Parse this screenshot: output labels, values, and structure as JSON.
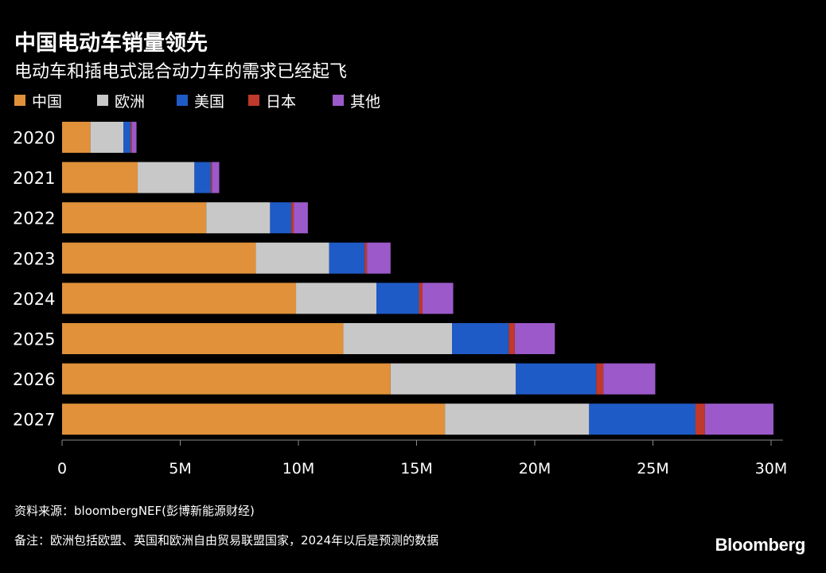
{
  "title": "中国电动车销量领先",
  "subtitle": "电动车和插电式混合动力车的需求已经起飞",
  "source": "资料来源：bloombergNEF(彭博新能源财经)",
  "note": "备注：欧洲包括欧盟、英国和欧洲自由贸易联盟国家，2024年以后是预测的数据",
  "brand": "Bloomberg",
  "colors": {
    "background": "#000000",
    "text": "#ffffff",
    "axis": "#888888"
  },
  "chart_data": {
    "type": "bar",
    "orientation": "horizontal",
    "stacked": true,
    "categories": [
      "2020",
      "2021",
      "2022",
      "2023",
      "2024",
      "2025",
      "2026",
      "2027"
    ],
    "series": [
      {
        "name": "中国",
        "color": "#E0913A",
        "values": [
          1.2,
          3.2,
          6.1,
          8.2,
          9.9,
          11.9,
          13.9,
          16.2
        ]
      },
      {
        "name": "欧洲",
        "color": "#C8C8C8",
        "values": [
          1.4,
          2.4,
          2.7,
          3.1,
          3.4,
          4.6,
          5.3,
          6.1
        ]
      },
      {
        "name": "美国",
        "color": "#1F5BC6",
        "values": [
          0.3,
          0.7,
          0.9,
          1.5,
          1.8,
          2.4,
          3.4,
          4.5
        ]
      },
      {
        "name": "日本",
        "color": "#C0392B",
        "values": [
          0.05,
          0.05,
          0.1,
          0.1,
          0.15,
          0.25,
          0.3,
          0.4
        ]
      },
      {
        "name": "其他",
        "color": "#9B59C9",
        "values": [
          0.2,
          0.3,
          0.6,
          1.0,
          1.3,
          1.7,
          2.2,
          2.9
        ]
      }
    ],
    "x_ticks": [
      "0",
      "5M",
      "10M",
      "15M",
      "20M",
      "25M",
      "30M"
    ],
    "x_tick_values": [
      0,
      5,
      10,
      15,
      20,
      25,
      30
    ],
    "xlim": [
      0,
      30.5
    ],
    "xlabel": "",
    "ylabel": "",
    "grid": false,
    "legend": "top-left"
  }
}
